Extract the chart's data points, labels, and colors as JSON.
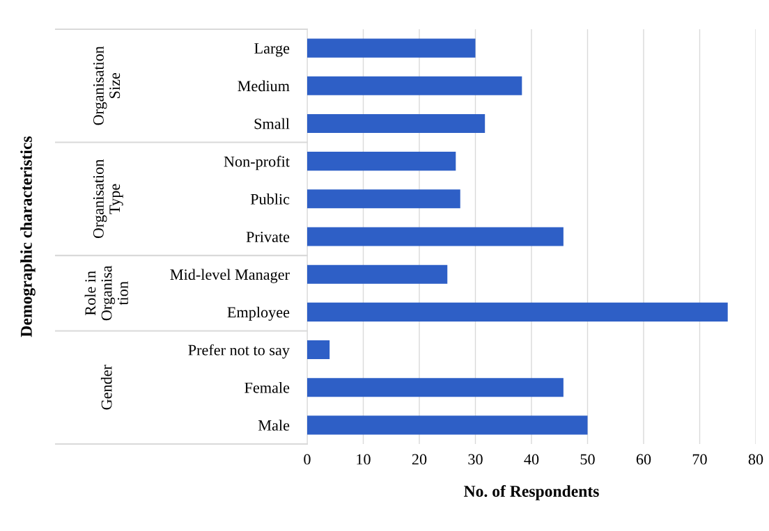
{
  "chart_data": {
    "type": "bar",
    "orientation": "horizontal",
    "categories": [
      "Large",
      "Medium",
      "Small",
      "Non-profit",
      "Public",
      "Private",
      "Mid-level Manager",
      "Employee",
      "Prefer not to say",
      "Female",
      "Male"
    ],
    "values": [
      30,
      38.3,
      31.7,
      26.5,
      27.3,
      45.7,
      25,
      75,
      4,
      45.7,
      50
    ],
    "color": "#2e5fc6",
    "xlim": [
      0,
      80
    ],
    "xticks": [
      0,
      10,
      20,
      30,
      40,
      50,
      60,
      70,
      80
    ],
    "xlabel": "No. of Respondents",
    "annotations": [
      "Demographic characteristics",
      "Organisation\nSize",
      "Organisation\nType",
      "Role in\nOrganisa\ntion",
      "Gender"
    ],
    "grid": "x",
    "legend": false
  }
}
